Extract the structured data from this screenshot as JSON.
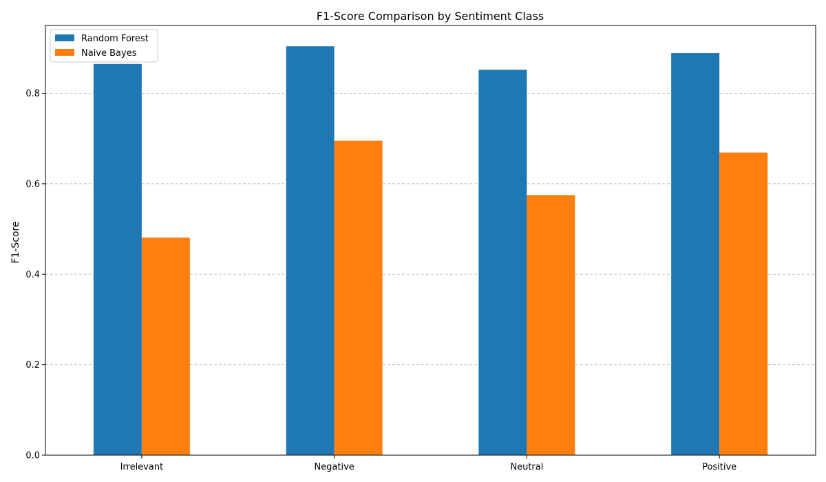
{
  "chart_data": {
    "type": "bar",
    "title": "F1-Score Comparison by Sentiment Class",
    "xlabel": "",
    "ylabel": "F1-Score",
    "categories": [
      "Irrelevant",
      "Negative",
      "Neutral",
      "Positive"
    ],
    "series": [
      {
        "name": "Random Forest",
        "color": "#1f77b4",
        "values": [
          0.865,
          0.904,
          0.852,
          0.889
        ]
      },
      {
        "name": "Naive Bayes",
        "color": "#ff7f0e",
        "values": [
          0.481,
          0.695,
          0.575,
          0.669
        ]
      }
    ],
    "ylim": [
      0,
      0.95
    ],
    "yticks": [
      0.0,
      0.2,
      0.4,
      0.6,
      0.8
    ],
    "ytick_labels": [
      "0.0",
      "0.2",
      "0.4",
      "0.6",
      "0.8"
    ],
    "grid": "y-dashed",
    "legend": "top-left"
  }
}
